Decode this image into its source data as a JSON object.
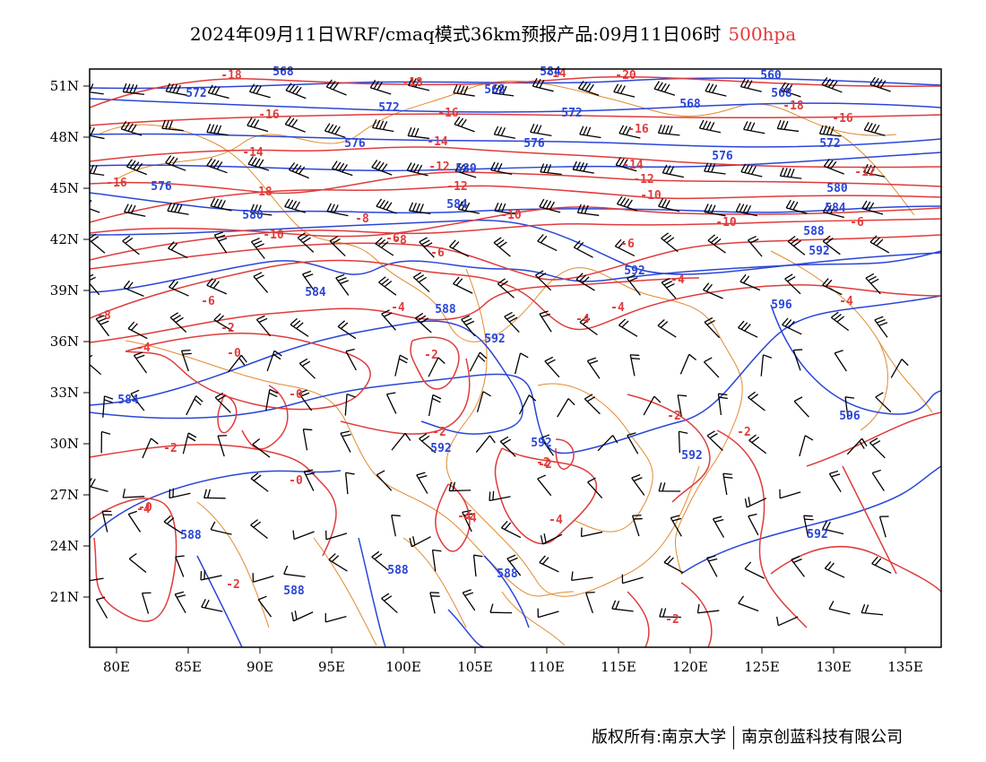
{
  "title": {
    "main": "2024年09月11日WRF/cmaq模式36km预报产品:09月11日06时",
    "level": "500hpa"
  },
  "footer": {
    "left": "版权所有:南京大学",
    "right": "南京创蓝科技有限公司"
  },
  "map": {
    "lon_range": [
      78,
      138
    ],
    "lat_range": [
      18,
      52
    ],
    "x_ticks": [
      "80E",
      "85E",
      "90E",
      "95E",
      "100E",
      "105E",
      "110E",
      "115E",
      "120E",
      "125E",
      "130E",
      "135E"
    ],
    "y_ticks": [
      "51N",
      "48N",
      "45N",
      "42N",
      "39N",
      "36N",
      "33N",
      "30N",
      "27N",
      "24N",
      "21N"
    ],
    "colors": {
      "temperature": "#e03b3b",
      "height": "#2a45d8",
      "boundary": "#e08a2e",
      "wind": "#000000"
    },
    "temperature_labels": [
      "-18",
      "-18",
      "-16",
      "-16",
      "-16",
      "-20",
      "-18",
      "-16",
      "-16",
      "-18",
      "-14",
      "-14",
      "-14",
      "-14",
      "-12",
      "-12",
      "-12",
      "-12",
      "-10",
      "-10",
      "-10",
      "-10",
      "-8",
      "-6",
      "-6",
      "-6",
      "-8",
      "-6",
      "-4",
      "-4",
      "-4",
      "-4",
      "-4",
      "-8",
      "-6",
      "-4",
      "-2",
      "-0",
      "-2",
      "-0",
      "-2",
      "-0",
      "-4",
      "-4",
      "-2",
      "-2",
      "-2",
      "-2",
      "-0",
      "-2",
      "-2",
      "-2",
      "-4",
      "-4",
      "-0",
      "-4"
    ],
    "height_labels": [
      "568",
      "572",
      "568",
      "584",
      "560",
      "572",
      "572",
      "568",
      "568",
      "576",
      "576",
      "576",
      "572",
      "576",
      "580",
      "580",
      "584",
      "580",
      "584",
      "588",
      "592",
      "592",
      "584",
      "588",
      "592",
      "596",
      "584",
      "592",
      "592",
      "592",
      "596",
      "588",
      "588",
      "588",
      "588",
      "592"
    ],
    "icons": [
      "wind-barb-icon"
    ]
  }
}
